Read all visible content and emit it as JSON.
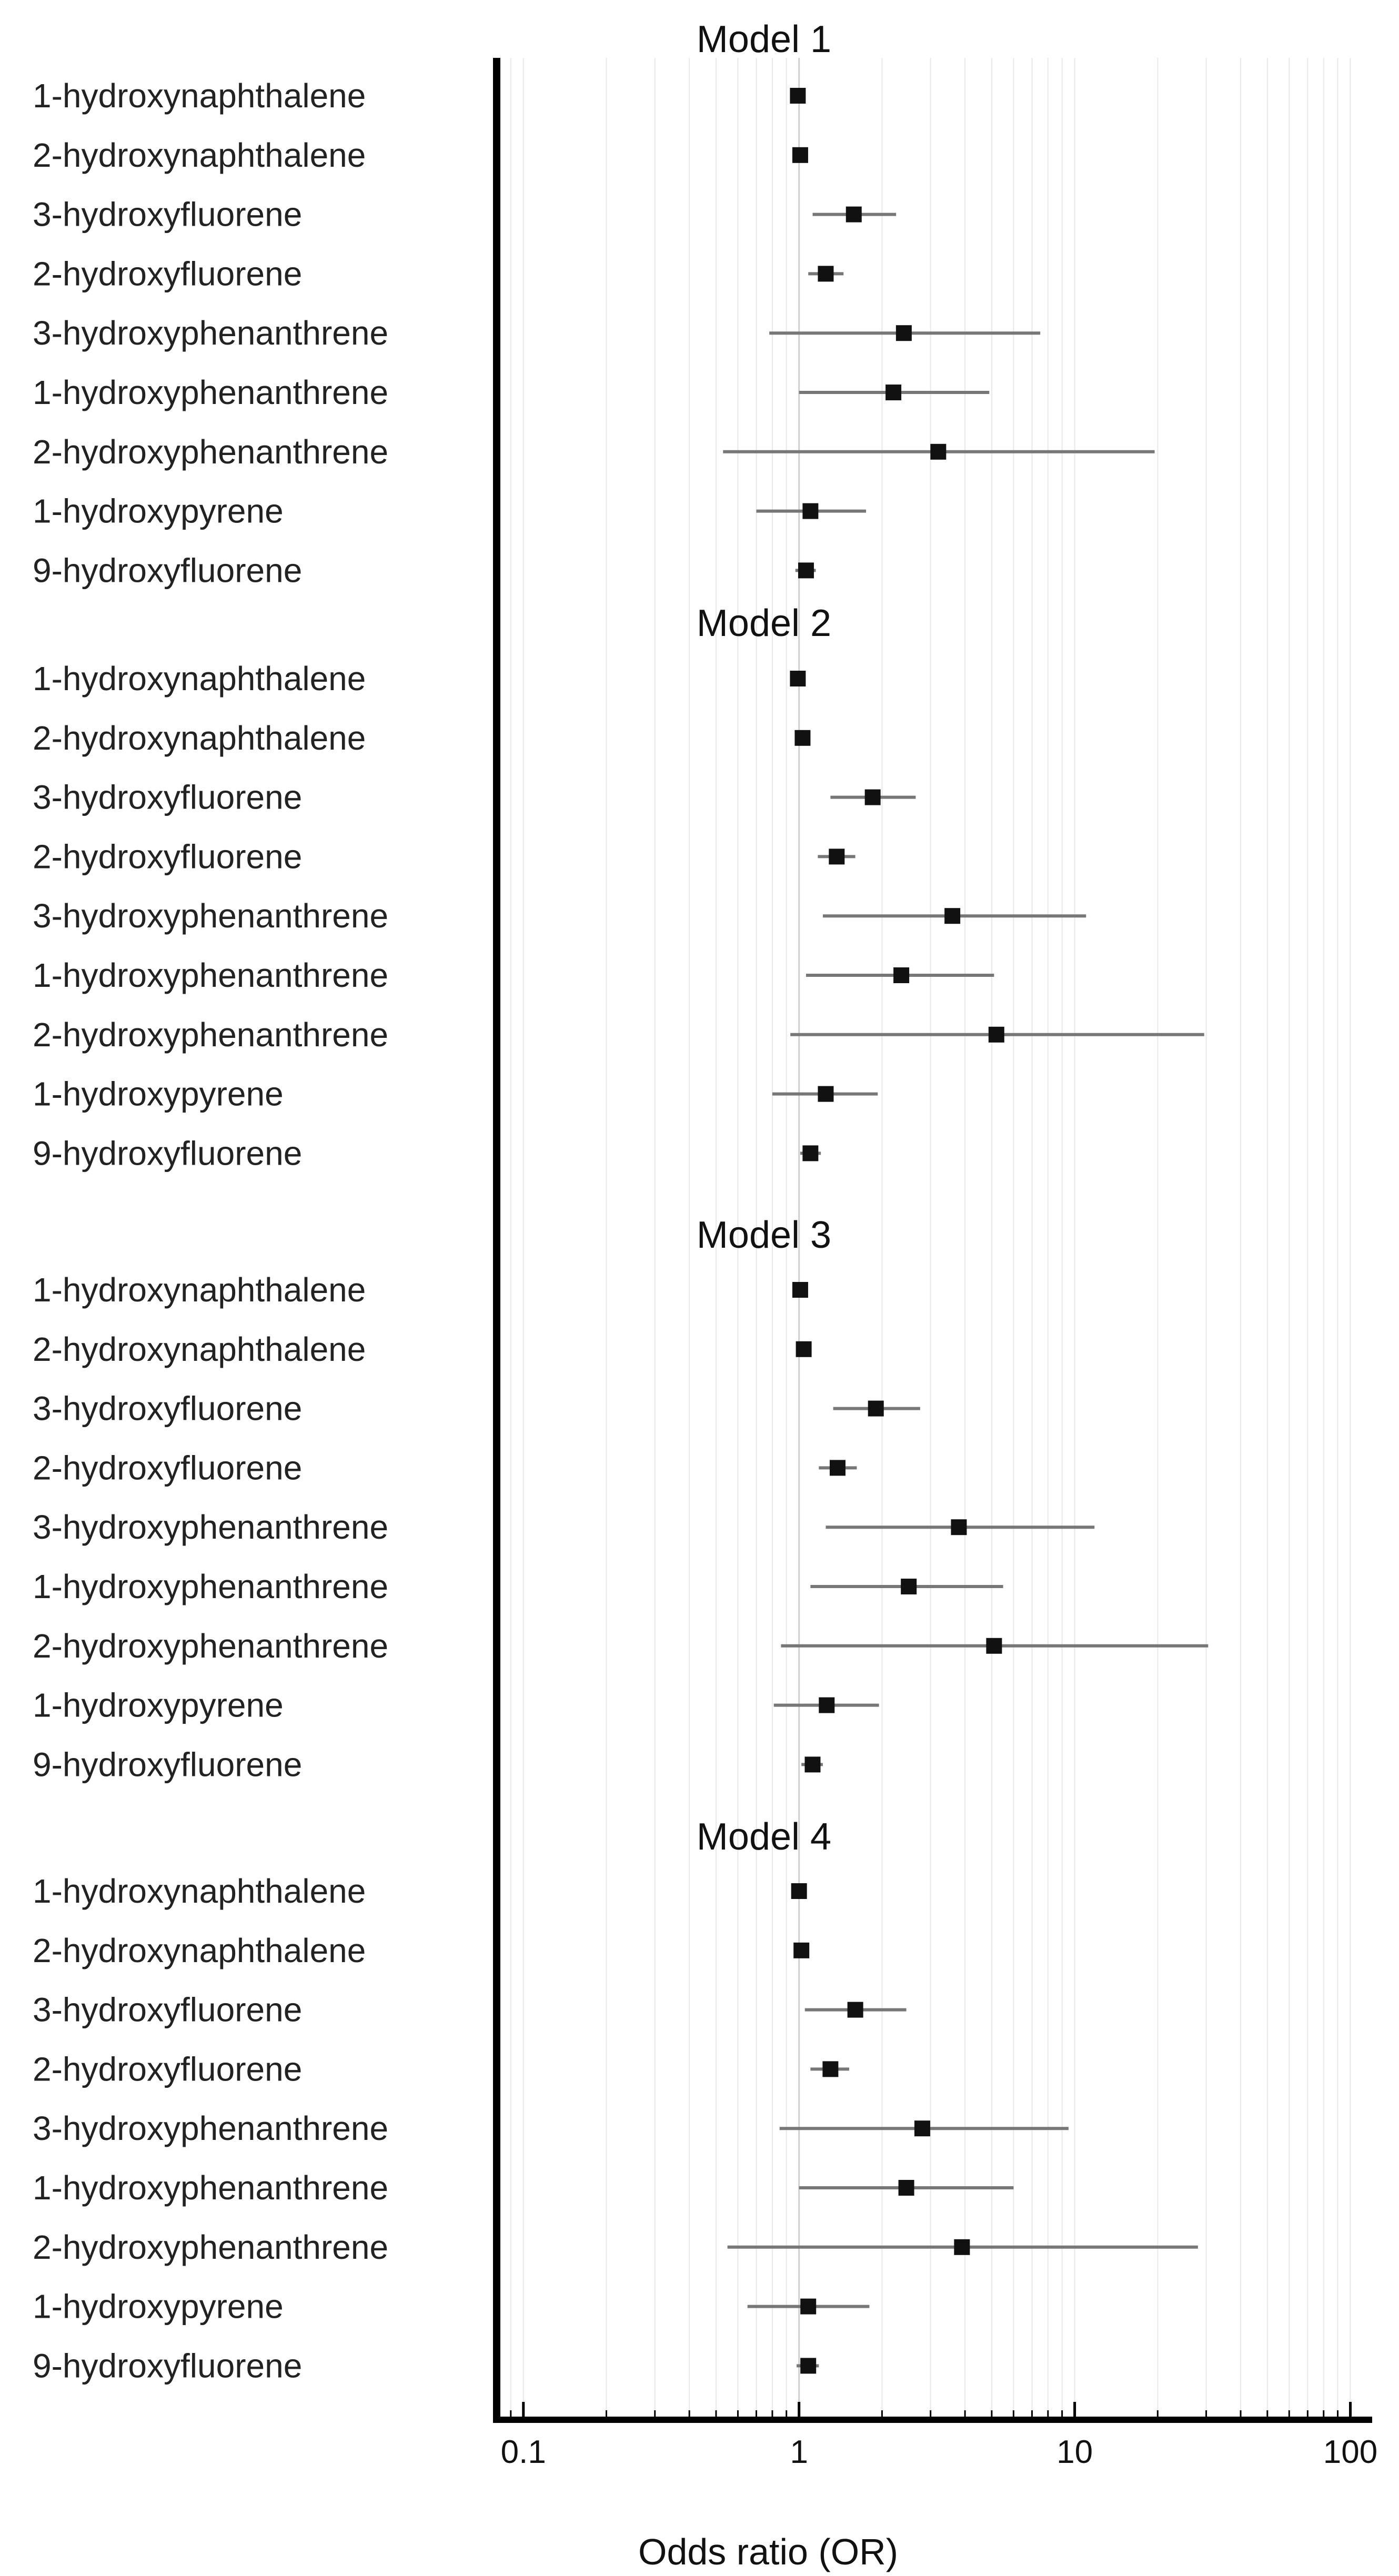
{
  "chart_data": {
    "type": "forest",
    "xlabel": "Odds ratio (OR)",
    "xscale": "log",
    "xlim": [
      0.08,
      120
    ],
    "xticks": [
      {
        "value": 0.1,
        "label": "0.1"
      },
      {
        "value": 1,
        "label": "1"
      },
      {
        "value": 10,
        "label": "10"
      },
      {
        "value": 100,
        "label": "100"
      }
    ],
    "reference_line": 1,
    "grid": "vertical-minor",
    "marker_color": "#111111",
    "ci_color": "#777777",
    "panels": [
      {
        "title": "Model 1",
        "rows": [
          {
            "label": "1-hydroxynaphthalene",
            "or": 0.99,
            "lo": 0.97,
            "hi": 1.02
          },
          {
            "label": "2-hydroxynaphthalene",
            "or": 1.01,
            "lo": 0.98,
            "hi": 1.04
          },
          {
            "label": "3-hydroxyfluorene",
            "or": 1.58,
            "lo": 1.12,
            "hi": 2.25
          },
          {
            "label": "2-hydroxyfluorene",
            "or": 1.25,
            "lo": 1.08,
            "hi": 1.45
          },
          {
            "label": "3-hydroxyphenanthrene",
            "or": 2.4,
            "lo": 0.78,
            "hi": 7.5
          },
          {
            "label": "1-hydroxyphenanthrene",
            "or": 2.2,
            "lo": 1.0,
            "hi": 4.9
          },
          {
            "label": "2-hydroxyphenanthrene",
            "or": 3.2,
            "lo": 0.53,
            "hi": 19.5
          },
          {
            "label": "1-hydroxypyrene",
            "or": 1.1,
            "lo": 0.7,
            "hi": 1.75
          },
          {
            "label": "9-hydroxyfluorene",
            "or": 1.06,
            "lo": 0.97,
            "hi": 1.15
          }
        ]
      },
      {
        "title": "Model 2",
        "rows": [
          {
            "label": "1-hydroxynaphthalene",
            "or": 0.99,
            "lo": 0.97,
            "hi": 1.02
          },
          {
            "label": "2-hydroxynaphthalene",
            "or": 1.03,
            "lo": 1.0,
            "hi": 1.06
          },
          {
            "label": "3-hydroxyfluorene",
            "or": 1.85,
            "lo": 1.3,
            "hi": 2.65
          },
          {
            "label": "2-hydroxyfluorene",
            "or": 1.37,
            "lo": 1.17,
            "hi": 1.6
          },
          {
            "label": "3-hydroxyphenanthrene",
            "or": 3.6,
            "lo": 1.22,
            "hi": 11.0
          },
          {
            "label": "1-hydroxyphenanthrene",
            "or": 2.35,
            "lo": 1.06,
            "hi": 5.1
          },
          {
            "label": "2-hydroxyphenanthrene",
            "or": 5.2,
            "lo": 0.93,
            "hi": 29.5
          },
          {
            "label": "1-hydroxypyrene",
            "or": 1.25,
            "lo": 0.8,
            "hi": 1.93
          },
          {
            "label": "9-hydroxyfluorene",
            "or": 1.1,
            "lo": 1.01,
            "hi": 1.2
          }
        ]
      },
      {
        "title": "Model 3",
        "rows": [
          {
            "label": "1-hydroxynaphthalene",
            "or": 1.01,
            "lo": 0.99,
            "hi": 1.04
          },
          {
            "label": "2-hydroxynaphthalene",
            "or": 1.04,
            "lo": 1.01,
            "hi": 1.07
          },
          {
            "label": "3-hydroxyfluorene",
            "or": 1.9,
            "lo": 1.33,
            "hi": 2.75
          },
          {
            "label": "2-hydroxyfluorene",
            "or": 1.38,
            "lo": 1.18,
            "hi": 1.62
          },
          {
            "label": "3-hydroxyphenanthrene",
            "or": 3.8,
            "lo": 1.25,
            "hi": 11.8
          },
          {
            "label": "1-hydroxyphenanthrene",
            "or": 2.5,
            "lo": 1.1,
            "hi": 5.5
          },
          {
            "label": "2-hydroxyphenanthrene",
            "or": 5.1,
            "lo": 0.86,
            "hi": 30.5
          },
          {
            "label": "1-hydroxypyrene",
            "or": 1.26,
            "lo": 0.81,
            "hi": 1.95
          },
          {
            "label": "9-hydroxyfluorene",
            "or": 1.12,
            "lo": 1.02,
            "hi": 1.22
          }
        ]
      },
      {
        "title": "Model 4",
        "rows": [
          {
            "label": "1-hydroxynaphthalene",
            "or": 1.0,
            "lo": 0.98,
            "hi": 1.03
          },
          {
            "label": "2-hydroxynaphthalene",
            "or": 1.02,
            "lo": 0.99,
            "hi": 1.05
          },
          {
            "label": "3-hydroxyfluorene",
            "or": 1.6,
            "lo": 1.05,
            "hi": 2.45
          },
          {
            "label": "2-hydroxyfluorene",
            "or": 1.3,
            "lo": 1.1,
            "hi": 1.52
          },
          {
            "label": "3-hydroxyphenanthrene",
            "or": 2.8,
            "lo": 0.85,
            "hi": 9.5
          },
          {
            "label": "1-hydroxyphenanthrene",
            "or": 2.45,
            "lo": 1.0,
            "hi": 6.0
          },
          {
            "label": "2-hydroxyphenanthrene",
            "or": 3.9,
            "lo": 0.55,
            "hi": 28.0
          },
          {
            "label": "1-hydroxypyrene",
            "or": 1.08,
            "lo": 0.65,
            "hi": 1.8
          },
          {
            "label": "9-hydroxyfluorene",
            "or": 1.08,
            "lo": 0.98,
            "hi": 1.18
          }
        ]
      }
    ]
  }
}
